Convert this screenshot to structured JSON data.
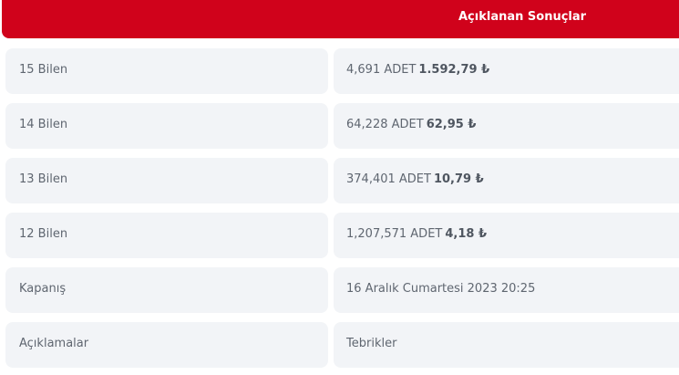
{
  "header": {
    "title": "Açıklanan Sonuçlar"
  },
  "rows": [
    {
      "label": "15 Bilen",
      "count": "4,691 ADET",
      "amount": "1.592,79 ₺"
    },
    {
      "label": "14 Bilen",
      "count": "64,228 ADET",
      "amount": "62,95 ₺"
    },
    {
      "label": "13 Bilen",
      "count": "374,401 ADET",
      "amount": "10,79 ₺"
    },
    {
      "label": "12 Bilen",
      "count": "1,207,571 ADET",
      "amount": "4,18 ₺"
    },
    {
      "label": "Kapanış",
      "count": "16 Aralık Cumartesi 2023 20:25",
      "amount": ""
    },
    {
      "label": "Açıklamalar",
      "count": "Tebrikler",
      "amount": ""
    }
  ]
}
